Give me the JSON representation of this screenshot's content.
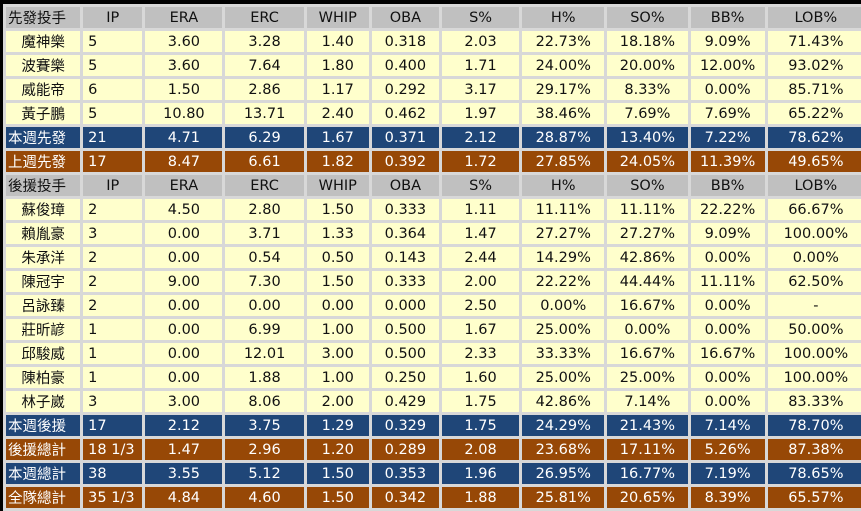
{
  "columns": [
    "IP",
    "ERA",
    "ERC",
    "WHIP",
    "OBA",
    "S%",
    "H%",
    "SO%",
    "BB%",
    "LOB%"
  ],
  "starters_header": "先發投手",
  "starters": [
    {
      "name": "魔神樂",
      "v": [
        "5",
        "3.60",
        "3.28",
        "1.40",
        "0.318",
        "2.03",
        "22.73%",
        "18.18%",
        "9.09%",
        "71.43%"
      ]
    },
    {
      "name": "波賽樂",
      "v": [
        "5",
        "3.60",
        "7.64",
        "1.80",
        "0.400",
        "1.71",
        "24.00%",
        "20.00%",
        "12.00%",
        "93.02%"
      ]
    },
    {
      "name": "威能帝",
      "v": [
        "6",
        "1.50",
        "2.86",
        "1.17",
        "0.292",
        "3.17",
        "29.17%",
        "8.33%",
        "0.00%",
        "85.71%"
      ]
    },
    {
      "name": "黃子鵬",
      "v": [
        "5",
        "10.80",
        "13.71",
        "2.40",
        "0.462",
        "1.97",
        "38.46%",
        "7.69%",
        "7.69%",
        "65.22%"
      ]
    }
  ],
  "starter_totals": [
    {
      "name": "本週先發",
      "style": "blue",
      "v": [
        "21",
        "4.71",
        "6.29",
        "1.67",
        "0.371",
        "2.12",
        "28.87%",
        "13.40%",
        "7.22%",
        "78.62%"
      ]
    },
    {
      "name": "上週先發",
      "style": "brown",
      "v": [
        "17",
        "8.47",
        "6.61",
        "1.82",
        "0.392",
        "1.72",
        "27.85%",
        "24.05%",
        "11.39%",
        "49.65%"
      ]
    }
  ],
  "relievers_header": "後援投手",
  "relievers": [
    {
      "name": "蘇俊璋",
      "v": [
        "2",
        "4.50",
        "2.80",
        "1.50",
        "0.333",
        "1.11",
        "11.11%",
        "11.11%",
        "22.22%",
        "66.67%"
      ]
    },
    {
      "name": "賴胤豪",
      "v": [
        "3",
        "0.00",
        "3.71",
        "1.33",
        "0.364",
        "1.47",
        "27.27%",
        "27.27%",
        "9.09%",
        "100.00%"
      ]
    },
    {
      "name": "朱承洋",
      "v": [
        "2",
        "0.00",
        "0.54",
        "0.50",
        "0.143",
        "2.44",
        "14.29%",
        "42.86%",
        "0.00%",
        "0.00%"
      ]
    },
    {
      "name": "陳冠宇",
      "v": [
        "2",
        "9.00",
        "7.30",
        "1.50",
        "0.333",
        "2.00",
        "22.22%",
        "44.44%",
        "11.11%",
        "62.50%"
      ]
    },
    {
      "name": "呂詠臻",
      "v": [
        "2",
        "0.00",
        "0.00",
        "0.00",
        "0.000",
        "2.50",
        "0.00%",
        "16.67%",
        "0.00%",
        "-"
      ]
    },
    {
      "name": "莊昕諺",
      "v": [
        "1",
        "0.00",
        "6.99",
        "1.00",
        "0.500",
        "1.67",
        "25.00%",
        "0.00%",
        "0.00%",
        "50.00%"
      ]
    },
    {
      "name": "邱駿威",
      "v": [
        "1",
        "0.00",
        "12.01",
        "3.00",
        "0.500",
        "2.33",
        "33.33%",
        "16.67%",
        "16.67%",
        "100.00%"
      ]
    },
    {
      "name": "陳柏豪",
      "v": [
        "1",
        "0.00",
        "1.88",
        "1.00",
        "0.250",
        "1.60",
        "25.00%",
        "25.00%",
        "0.00%",
        "100.00%"
      ]
    },
    {
      "name": "林子崴",
      "v": [
        "3",
        "3.00",
        "8.06",
        "2.00",
        "0.429",
        "1.75",
        "42.86%",
        "7.14%",
        "0.00%",
        "83.33%"
      ]
    }
  ],
  "reliever_totals": [
    {
      "name": "本週後援",
      "style": "blue",
      "v": [
        "17",
        "2.12",
        "3.75",
        "1.29",
        "0.329",
        "1.75",
        "24.29%",
        "21.43%",
        "7.14%",
        "78.70%"
      ]
    },
    {
      "name": "後援總計",
      "style": "brown",
      "v": [
        "18 1/3",
        "1.47",
        "2.96",
        "1.20",
        "0.289",
        "2.08",
        "23.68%",
        "17.11%",
        "5.26%",
        "87.38%"
      ]
    },
    {
      "name": "本週總計",
      "style": "blue",
      "v": [
        "38",
        "3.55",
        "5.12",
        "1.50",
        "0.353",
        "1.96",
        "26.95%",
        "16.77%",
        "7.19%",
        "78.65%"
      ]
    },
    {
      "name": "全隊總計",
      "style": "brown",
      "v": [
        "35 1/3",
        "4.84",
        "4.60",
        "1.50",
        "0.342",
        "1.88",
        "25.81%",
        "20.65%",
        "8.39%",
        "65.57%"
      ]
    }
  ]
}
